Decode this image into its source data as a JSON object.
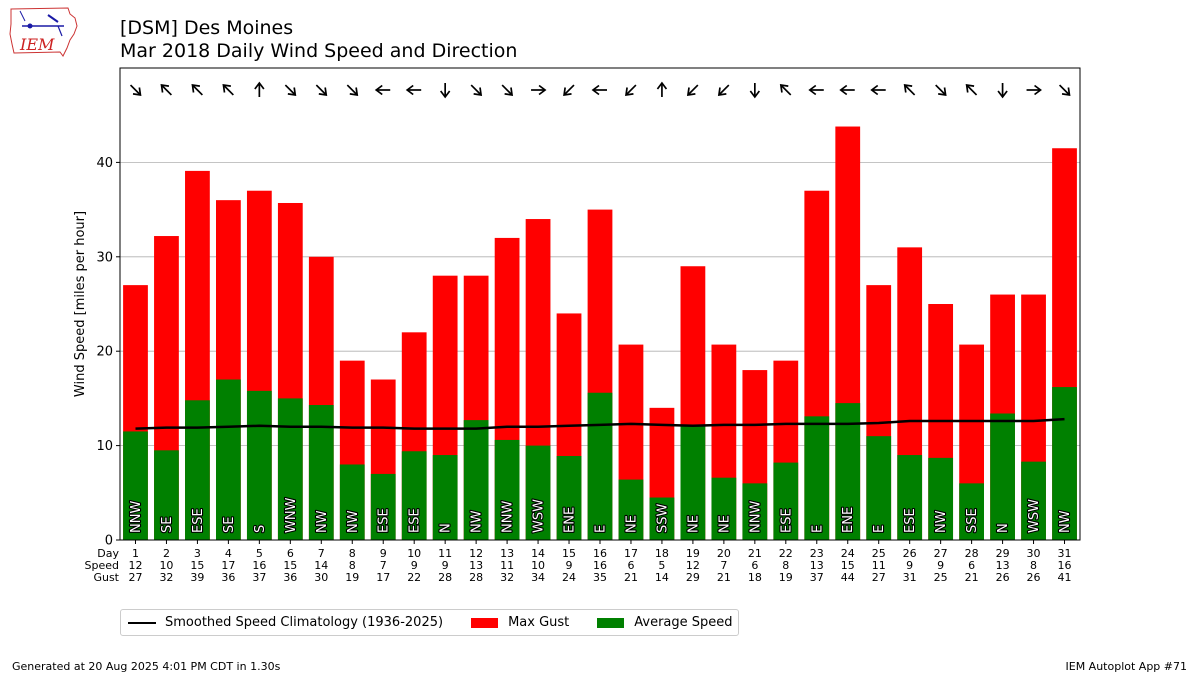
{
  "header": {
    "title_line1": "[DSM] Des Moines",
    "title_line2": "Mar 2018 Daily Wind Speed and Direction",
    "logo_text": "IEM"
  },
  "colors": {
    "gust": "#ff0000",
    "average": "#008000",
    "climatology": "#000000"
  },
  "chart_data": {
    "type": "bar",
    "ylabel": "Wind Speed [miles per hour]",
    "ylim": [
      0,
      50
    ],
    "yticks": [
      0,
      10,
      20,
      30,
      40
    ],
    "grid": true,
    "row_labels": [
      "Day",
      "Speed",
      "Gust"
    ],
    "days": [
      1,
      2,
      3,
      4,
      5,
      6,
      7,
      8,
      9,
      10,
      11,
      12,
      13,
      14,
      15,
      16,
      17,
      18,
      19,
      20,
      21,
      22,
      23,
      24,
      25,
      26,
      27,
      28,
      29,
      30,
      31
    ],
    "avg_speed_labels": [
      12,
      10,
      15,
      17,
      16,
      15,
      14,
      8,
      7,
      9,
      9,
      13,
      11,
      10,
      9,
      16,
      6,
      5,
      12,
      7,
      6,
      8,
      13,
      15,
      11,
      9,
      9,
      6,
      13,
      8,
      16
    ],
    "gust_labels": [
      27,
      32,
      39,
      36,
      37,
      36,
      30,
      19,
      17,
      22,
      28,
      28,
      32,
      34,
      24,
      35,
      21,
      14,
      29,
      21,
      18,
      19,
      37,
      44,
      27,
      31,
      25,
      21,
      26,
      26,
      41
    ],
    "avg_speed": [
      11.5,
      9.5,
      14.8,
      17.0,
      15.8,
      15.0,
      14.3,
      8.0,
      7.0,
      9.4,
      9.0,
      12.7,
      10.6,
      10.0,
      8.9,
      15.6,
      6.4,
      4.5,
      12.2,
      6.6,
      6.0,
      8.2,
      13.1,
      14.5,
      11.0,
      9.0,
      8.7,
      6.0,
      13.4,
      8.3,
      16.2
    ],
    "max_gust": [
      27.0,
      32.2,
      39.1,
      36.0,
      37.0,
      35.7,
      30.0,
      19.0,
      17.0,
      22.0,
      28.0,
      28.0,
      32.0,
      34.0,
      24.0,
      35.0,
      20.7,
      14.0,
      29.0,
      20.7,
      18.0,
      19.0,
      37.0,
      43.8,
      27.0,
      31.0,
      25.0,
      20.7,
      26.0,
      26.0,
      41.5
    ],
    "direction": [
      "NNW",
      "SE",
      "ESE",
      "SE",
      "S",
      "WNW",
      "NW",
      "NW",
      "ESE",
      "ESE",
      "N",
      "NW",
      "NNW",
      "WSW",
      "ENE",
      "E",
      "NE",
      "SSW",
      "NE",
      "NE",
      "NNW",
      "ESE",
      "E",
      "ENE",
      "E",
      "ESE",
      "NW",
      "SSE",
      "N",
      "WSW",
      "NW"
    ],
    "climatology": [
      11.8,
      11.9,
      11.9,
      12.0,
      12.1,
      12.0,
      12.0,
      11.9,
      11.9,
      11.8,
      11.8,
      11.8,
      12.0,
      12.0,
      12.1,
      12.2,
      12.3,
      12.2,
      12.1,
      12.2,
      12.2,
      12.3,
      12.3,
      12.3,
      12.4,
      12.6,
      12.6,
      12.6,
      12.6,
      12.6,
      12.8
    ],
    "arrows": [
      "SE",
      "NW",
      "NW",
      "NW",
      "N",
      "SE",
      "SE",
      "SE",
      "W",
      "W",
      "S",
      "SE",
      "SE",
      "E",
      "SW",
      "W",
      "SW",
      "N",
      "SW",
      "SW",
      "S",
      "NW",
      "W",
      "W",
      "W",
      "NW",
      "SE",
      "NW",
      "S",
      "E",
      "SE"
    ],
    "legend": [
      {
        "label": "Smoothed Speed Climatology (1936-2025)",
        "kind": "line",
        "color": "#000000"
      },
      {
        "label": "Max Gust",
        "kind": "box",
        "color": "#ff0000"
      },
      {
        "label": "Average Speed",
        "kind": "box",
        "color": "#008000"
      }
    ],
    "legend_position": "bottom"
  },
  "footer": {
    "left": "Generated at 20 Aug 2025 4:01 PM CDT in 1.30s",
    "right": "IEM Autoplot App #71"
  }
}
